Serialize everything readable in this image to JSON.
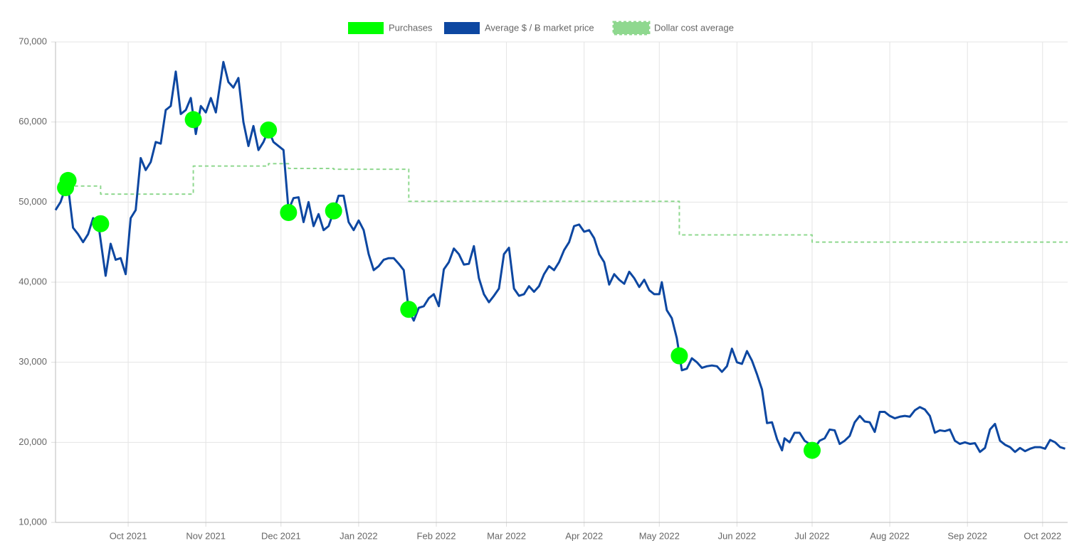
{
  "chart_data": {
    "type": "line",
    "xlim": [
      "2021-09-02",
      "2022-10-11"
    ],
    "xticks": [
      {
        "value": "2021-10",
        "label": "Oct 2021"
      },
      {
        "value": "2021-11",
        "label": "Nov 2021"
      },
      {
        "value": "2021-12",
        "label": "Dec 2021"
      },
      {
        "value": "2022-01",
        "label": "Jan 2022"
      },
      {
        "value": "2022-02",
        "label": "Feb 2022"
      },
      {
        "value": "2022-03",
        "label": "Mar 2022"
      },
      {
        "value": "2022-04",
        "label": "Apr 2022"
      },
      {
        "value": "2022-05",
        "label": "May 2022"
      },
      {
        "value": "2022-06",
        "label": "Jun 2022"
      },
      {
        "value": "2022-07",
        "label": "Jul 2022"
      },
      {
        "value": "2022-08",
        "label": "Aug 2022"
      },
      {
        "value": "2022-09",
        "label": "Sep 2022"
      },
      {
        "value": "2022-10",
        "label": "Oct 2022"
      }
    ],
    "ylim": [
      10000,
      70000
    ],
    "yticks": [
      {
        "value": 10000,
        "label": "10,000"
      },
      {
        "value": 20000,
        "label": "20,000"
      },
      {
        "value": 30000,
        "label": "30,000"
      },
      {
        "value": 40000,
        "label": "40,000"
      },
      {
        "value": 50000,
        "label": "50,000"
      },
      {
        "value": 60000,
        "label": "60,000"
      },
      {
        "value": 70000,
        "label": "70,000"
      }
    ],
    "grid": true,
    "legend": "top",
    "series": [
      {
        "name": "Purchases",
        "type": "scatter",
        "color": "#00ff00",
        "x": [
          "2021-09-06",
          "2021-09-07",
          "2021-09-20",
          "2021-10-27",
          "2021-11-26",
          "2021-12-04",
          "2021-12-22",
          "2022-01-21",
          "2022-05-09",
          "2022-07-01"
        ],
        "values": [
          51800,
          52700,
          47300,
          60300,
          59000,
          48700,
          48900,
          36600,
          30800,
          19000
        ]
      },
      {
        "name": "Average $ / Ƀ market price",
        "type": "line",
        "color": "#0d47a1",
        "x": [
          "2021-09-02",
          "2021-09-04",
          "2021-09-06",
          "2021-09-07",
          "2021-09-09",
          "2021-09-11",
          "2021-09-13",
          "2021-09-15",
          "2021-09-17",
          "2021-09-19",
          "2021-09-21",
          "2021-09-22",
          "2021-09-24",
          "2021-09-26",
          "2021-09-28",
          "2021-09-30",
          "2021-10-02",
          "2021-10-04",
          "2021-10-06",
          "2021-10-08",
          "2021-10-10",
          "2021-10-12",
          "2021-10-14",
          "2021-10-16",
          "2021-10-18",
          "2021-10-20",
          "2021-10-22",
          "2021-10-24",
          "2021-10-26",
          "2021-10-28",
          "2021-10-30",
          "2021-11-01",
          "2021-11-03",
          "2021-11-05",
          "2021-11-08",
          "2021-11-10",
          "2021-11-12",
          "2021-11-14",
          "2021-11-16",
          "2021-11-18",
          "2021-11-20",
          "2021-11-22",
          "2021-11-24",
          "2021-11-26",
          "2021-11-28",
          "2021-11-30",
          "2021-12-02",
          "2021-12-04",
          "2021-12-06",
          "2021-12-08",
          "2021-12-10",
          "2021-12-12",
          "2021-12-14",
          "2021-12-16",
          "2021-12-18",
          "2021-12-20",
          "2021-12-22",
          "2021-12-24",
          "2021-12-26",
          "2021-12-28",
          "2021-12-30",
          "2022-01-01",
          "2022-01-03",
          "2022-01-05",
          "2022-01-07",
          "2022-01-09",
          "2022-01-11",
          "2022-01-13",
          "2022-01-15",
          "2022-01-17",
          "2022-01-19",
          "2022-01-21",
          "2022-01-23",
          "2022-01-25",
          "2022-01-27",
          "2022-01-29",
          "2022-01-31",
          "2022-02-02",
          "2022-02-04",
          "2022-02-06",
          "2022-02-08",
          "2022-02-10",
          "2022-02-12",
          "2022-02-14",
          "2022-02-16",
          "2022-02-18",
          "2022-02-20",
          "2022-02-22",
          "2022-02-24",
          "2022-02-26",
          "2022-02-28",
          "2022-03-02",
          "2022-03-04",
          "2022-03-06",
          "2022-03-08",
          "2022-03-10",
          "2022-03-12",
          "2022-03-14",
          "2022-03-16",
          "2022-03-18",
          "2022-03-20",
          "2022-03-22",
          "2022-03-24",
          "2022-03-26",
          "2022-03-28",
          "2022-03-30",
          "2022-04-01",
          "2022-04-03",
          "2022-04-05",
          "2022-04-07",
          "2022-04-09",
          "2022-04-11",
          "2022-04-13",
          "2022-04-15",
          "2022-04-17",
          "2022-04-19",
          "2022-04-21",
          "2022-04-23",
          "2022-04-25",
          "2022-04-27",
          "2022-04-29",
          "2022-05-01",
          "2022-05-02",
          "2022-05-04",
          "2022-05-06",
          "2022-05-08",
          "2022-05-10",
          "2022-05-12",
          "2022-05-14",
          "2022-05-16",
          "2022-05-18",
          "2022-05-20",
          "2022-05-22",
          "2022-05-24",
          "2022-05-26",
          "2022-05-28",
          "2022-05-30",
          "2022-06-01",
          "2022-06-03",
          "2022-06-05",
          "2022-06-07",
          "2022-06-09",
          "2022-06-11",
          "2022-06-13",
          "2022-06-15",
          "2022-06-17",
          "2022-06-19",
          "2022-06-20",
          "2022-06-22",
          "2022-06-24",
          "2022-06-26",
          "2022-06-28",
          "2022-06-30",
          "2022-07-02",
          "2022-07-04",
          "2022-07-06",
          "2022-07-08",
          "2022-07-10",
          "2022-07-12",
          "2022-07-14",
          "2022-07-16",
          "2022-07-18",
          "2022-07-20",
          "2022-07-22",
          "2022-07-24",
          "2022-07-26",
          "2022-07-28",
          "2022-07-30",
          "2022-08-01",
          "2022-08-03",
          "2022-08-05",
          "2022-08-07",
          "2022-08-09",
          "2022-08-11",
          "2022-08-13",
          "2022-08-15",
          "2022-08-17",
          "2022-08-19",
          "2022-08-21",
          "2022-08-23",
          "2022-08-25",
          "2022-08-27",
          "2022-08-29",
          "2022-08-31",
          "2022-09-02",
          "2022-09-04",
          "2022-09-06",
          "2022-09-08",
          "2022-09-10",
          "2022-09-12",
          "2022-09-14",
          "2022-09-16",
          "2022-09-18",
          "2022-09-20",
          "2022-09-22",
          "2022-09-24",
          "2022-09-26",
          "2022-09-28",
          "2022-09-30",
          "2022-10-02",
          "2022-10-04",
          "2022-10-06",
          "2022-10-08",
          "2022-10-10"
        ],
        "values": [
          49000,
          50000,
          51800,
          52000,
          46800,
          46000,
          45000,
          46000,
          48000,
          47500,
          43000,
          40800,
          44800,
          42800,
          43000,
          41000,
          48000,
          49000,
          55500,
          54000,
          55000,
          57500,
          57300,
          61500,
          62000,
          66300,
          61000,
          61500,
          63000,
          58500,
          62000,
          61200,
          63000,
          61200,
          67500,
          65000,
          64300,
          65500,
          60000,
          57000,
          59500,
          56500,
          57500,
          59000,
          57500,
          57000,
          56500,
          49000,
          50500,
          50600,
          47500,
          50000,
          47000,
          48500,
          46500,
          47000,
          48800,
          50800,
          50800,
          47500,
          46500,
          47700,
          46500,
          43500,
          41500,
          42000,
          42800,
          43000,
          43000,
          42300,
          41500,
          36500,
          35200,
          36800,
          37000,
          38000,
          38500,
          37000,
          41600,
          42500,
          44200,
          43500,
          42200,
          42300,
          44500,
          40500,
          38500,
          37500,
          38300,
          39200,
          43500,
          44300,
          39200,
          38300,
          38500,
          39500,
          38800,
          39500,
          41000,
          42000,
          41500,
          42500,
          44000,
          45000,
          47000,
          47200,
          46300,
          46500,
          45500,
          43500,
          42500,
          39700,
          41000,
          40300,
          39800,
          41300,
          40500,
          39400,
          40300,
          39000,
          38500,
          38500,
          40000,
          36500,
          35500,
          33000,
          29000,
          29200,
          30500,
          30000,
          29300,
          29500,
          29600,
          29500,
          28800,
          29500,
          31700,
          30000,
          29800,
          31400,
          30200,
          28500,
          26600,
          22400,
          22500,
          20400,
          19000,
          20500,
          20000,
          21200,
          21200,
          20200,
          19800,
          19300,
          20200,
          20500,
          21600,
          21500,
          19800,
          20200,
          20800,
          22500,
          23300,
          22600,
          22500,
          21300,
          23800,
          23800,
          23300,
          23000,
          23200,
          23300,
          23200,
          24000,
          24400,
          24100,
          23300,
          21200,
          21500,
          21400,
          21600,
          20200,
          19800,
          20000,
          19800,
          19900,
          18800,
          19300,
          21600,
          22300,
          20200,
          19700,
          19400,
          18800,
          19300,
          18900,
          19200,
          19400,
          19400,
          19200,
          20300,
          20000,
          19400,
          19200
        ]
      },
      {
        "name": "Dollar cost average",
        "type": "line",
        "step": "after",
        "dashed": true,
        "color": "#8fd88f",
        "x": [
          "2021-09-07",
          "2021-09-20",
          "2021-10-27",
          "2021-11-26",
          "2021-12-04",
          "2021-12-22",
          "2022-01-21",
          "2022-05-09",
          "2022-07-01",
          "2022-10-11"
        ],
        "values": [
          52000,
          51000,
          54500,
          54800,
          54200,
          54100,
          50100,
          45900,
          45000,
          45000
        ]
      }
    ]
  }
}
